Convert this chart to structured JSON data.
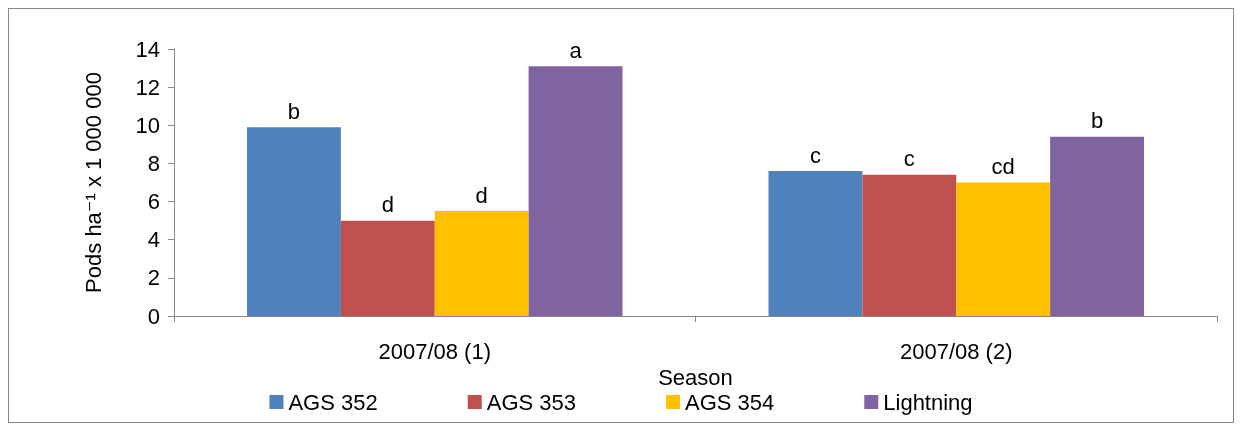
{
  "chart_data": {
    "type": "bar",
    "xlabel": "Season",
    "ylabel": "Pods ha⁻¹ x 1 000 000",
    "categories": [
      "2007/08 (1)",
      "2007/08 (2)"
    ],
    "series": [
      {
        "name": "AGS 352",
        "color": "#4f81bd",
        "values": [
          9.9,
          7.6
        ],
        "value_labels": [
          "b",
          "c"
        ]
      },
      {
        "name": "AGS 353",
        "color": "#c0504d",
        "values": [
          5.0,
          7.4
        ],
        "value_labels": [
          "d",
          "c"
        ]
      },
      {
        "name": "AGS 354",
        "color": "#ffc000",
        "values": [
          5.5,
          7.0
        ],
        "value_labels": [
          "d",
          "cd"
        ]
      },
      {
        "name": "Lightning",
        "color": "#8064a2",
        "values": [
          13.1,
          9.4
        ],
        "value_labels": [
          "a",
          "b"
        ]
      }
    ],
    "ylim": [
      0,
      14
    ],
    "yticks": [
      0,
      2,
      4,
      6,
      8,
      10,
      12,
      14
    ],
    "grid": false,
    "legend": "bottom"
  }
}
